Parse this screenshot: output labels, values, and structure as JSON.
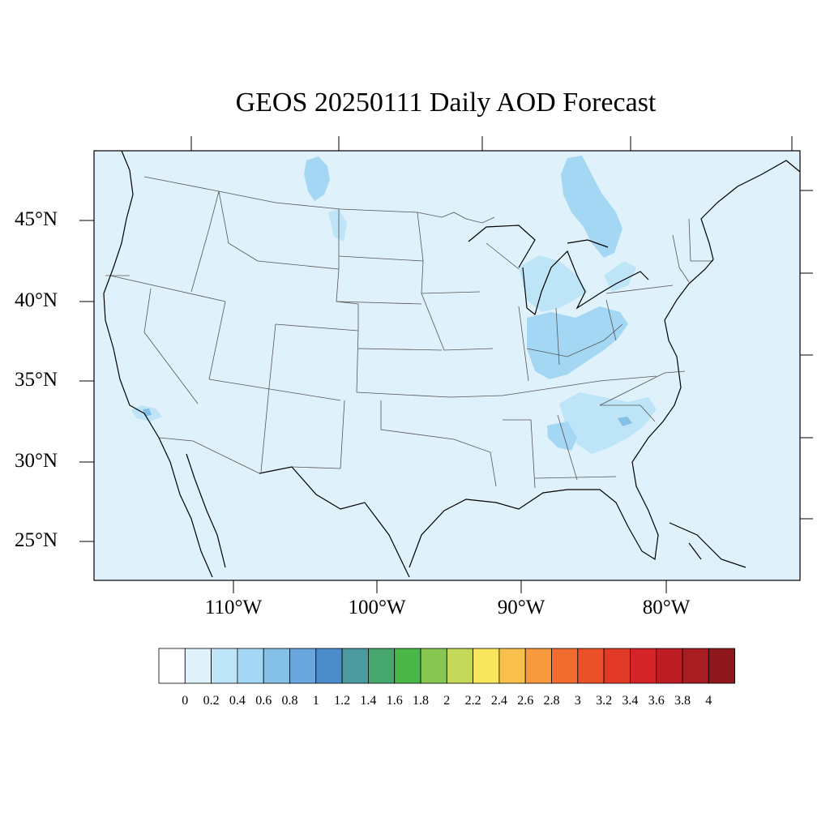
{
  "title": "GEOS 20250111 Daily AOD Forecast",
  "colors": {
    "ocean_background": "#dff1fa",
    "land_background": "#dff1fa",
    "state_lines": "#555555",
    "coastline": "#000000",
    "aod_0_2_to_0_4": "#bde4f7",
    "aod_0_4_to_0_6": "#a3d7f3"
  },
  "latitude_labels": [
    "45°N",
    "40°N",
    "35°N",
    "30°N",
    "25°N"
  ],
  "longitude_labels": [
    "110°W",
    "100°W",
    "90°W",
    "80°W"
  ],
  "colorbar": {
    "colors": [
      "#ffffff",
      "#dff1fa",
      "#bde4f7",
      "#a3d7f3",
      "#85c0e6",
      "#69a7dc",
      "#4b8ccb",
      "#4a9a9f",
      "#46a66e",
      "#4ab848",
      "#86c651",
      "#c3d858",
      "#f7e65e",
      "#f8c04a",
      "#f79a3e",
      "#f26c2f",
      "#ea5129",
      "#e13a27",
      "#d42329",
      "#bd1e26",
      "#a81c22",
      "#8e171c"
    ],
    "labels": [
      "0",
      "0.2",
      "0.4",
      "0.6",
      "0.8",
      "1",
      "1.2",
      "1.4",
      "1.6",
      "1.8",
      "2",
      "2.2",
      "2.4",
      "2.6",
      "2.8",
      "3",
      "3.2",
      "3.4",
      "3.6",
      "3.8",
      "4"
    ]
  }
}
